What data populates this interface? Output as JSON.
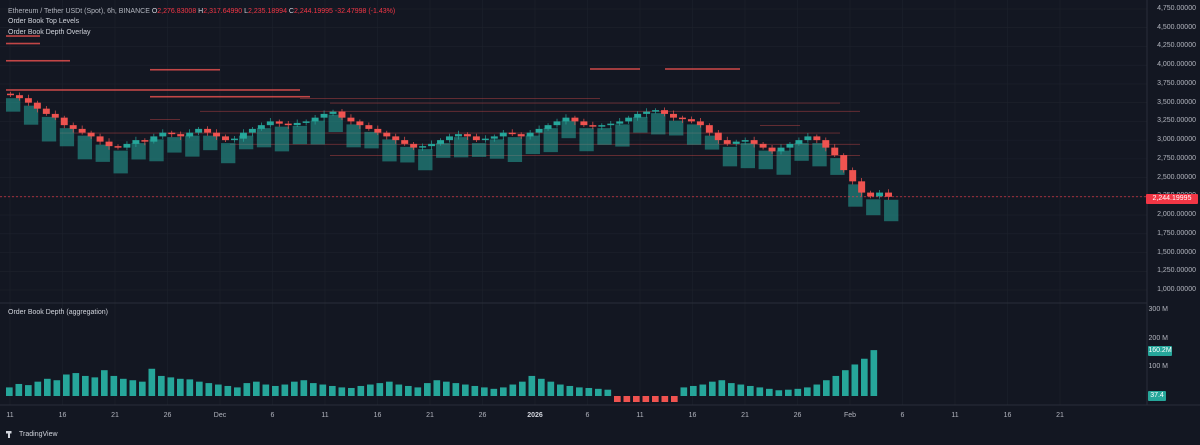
{
  "legend": {
    "symbol": "Ethereum / Tether USDt (Spot), 6h, BINANCE",
    "open_label": "O",
    "open": "2,276.83008",
    "high_label": "H",
    "high": "2,317.64990",
    "low_label": "L",
    "low": "2,235.18994",
    "close_label": "C",
    "close": "2,244.19995",
    "change": "-32.47998 (-1.43%)"
  },
  "indicators": {
    "top_levels": "Order Book Top Levels",
    "depth_overlay": "Order Book Depth Overlay",
    "depth_pane": "Order Book Depth (aggregation)"
  },
  "price_axis": [
    "4,750.00000",
    "4,500.00000",
    "4,250.00000",
    "4,000.00000",
    "3,750.00000",
    "3,500.00000",
    "3,250.00000",
    "3,000.00000",
    "2,750.00000",
    "2,500.00000",
    "2,250.00000",
    "2,000.00000",
    "1,750.00000",
    "1,500.00000",
    "1,250.00000",
    "1,000.00000"
  ],
  "current_price": "2,244.19995",
  "depth_axis": [
    "300 M",
    "200 M",
    "100 M"
  ],
  "depth_badge": "160.2M",
  "depth_low_badge": "37.4",
  "time_axis": [
    "11",
    "16",
    "21",
    "26",
    "Dec",
    "6",
    "11",
    "16",
    "21",
    "26",
    "2026",
    "6",
    "11",
    "16",
    "21",
    "26",
    "Feb",
    "6",
    "11",
    "16",
    "21"
  ],
  "time_axis_bold": [
    "2026"
  ],
  "footer": {
    "brand": "TradingView"
  },
  "colors": {
    "up": "#26a69a",
    "down": "#ef5350",
    "bg": "#131722",
    "grid": "#1e222d",
    "badge_red": "#f23645",
    "badge_teal": "#26a69a"
  },
  "chart_data": {
    "type": "candlestick",
    "ylim": [
      1000,
      4750
    ],
    "close_series": [
      3600,
      3560,
      3500,
      3420,
      3350,
      3300,
      3200,
      3150,
      3100,
      3050,
      2980,
      2920,
      2900,
      2950,
      3000,
      2980,
      3050,
      3100,
      3080,
      3050,
      3100,
      3150,
      3100,
      3050,
      3000,
      3020,
      3100,
      3150,
      3200,
      3250,
      3220,
      3200,
      3230,
      3250,
      3300,
      3350,
      3380,
      3300,
      3250,
      3200,
      3150,
      3100,
      3050,
      3000,
      2950,
      2900,
      2920,
      2950,
      3000,
      3050,
      3080,
      3050,
      3000,
      3020,
      3050,
      3100,
      3080,
      3050,
      3100,
      3150,
      3200,
      3250,
      3300,
      3250,
      3200,
      3180,
      3200,
      3220,
      3250,
      3300,
      3350,
      3380,
      3400,
      3350,
      3300,
      3280,
      3250,
      3200,
      3100,
      3000,
      2950,
      2980,
      3000,
      2950,
      2900,
      2850,
      2900,
      2950,
      3000,
      3050,
      3000,
      2900,
      2800,
      2600,
      2450,
      2300,
      2250,
      2300,
      2244
    ],
    "depth_values": [
      30,
      42,
      38,
      50,
      60,
      55,
      75,
      80,
      70,
      65,
      90,
      70,
      60,
      55,
      50,
      95,
      70,
      65,
      60,
      58,
      50,
      45,
      40,
      35,
      30,
      45,
      50,
      40,
      35,
      40,
      50,
      55,
      45,
      40,
      35,
      30,
      28,
      35,
      40,
      45,
      50,
      40,
      35,
      30,
      45,
      55,
      50,
      45,
      40,
      35,
      30,
      25,
      30,
      40,
      50,
      70,
      60,
      50,
      40,
      35,
      30,
      28,
      25,
      22,
      20,
      15,
      12,
      10,
      15,
      20,
      25,
      30,
      35,
      40,
      50,
      55,
      45,
      40,
      35,
      30,
      25,
      20,
      22,
      25,
      30,
      40,
      55,
      70,
      90,
      110,
      130,
      160
    ]
  }
}
